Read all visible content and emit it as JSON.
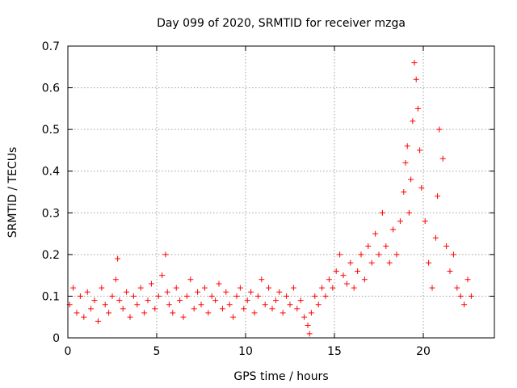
{
  "chart_data": {
    "type": "scatter",
    "title": "Day 099 of 2020, SRMTID for receiver mzga",
    "xlabel": "GPS time / hours",
    "ylabel": "SRMTID / TECUs",
    "xlim": [
      0,
      24
    ],
    "ylim": [
      0,
      0.7
    ],
    "xticks": [
      "0",
      "5",
      "10",
      "15",
      "20"
    ],
    "yticks": [
      "0",
      "0.1",
      "0.2",
      "0.3",
      "0.4",
      "0.5",
      "0.6",
      "0.7"
    ],
    "grid": true,
    "marker": "+",
    "series": [
      {
        "name": "SRMTID",
        "color": "#ff0000",
        "x": [
          0.1,
          0.3,
          0.5,
          0.7,
          0.9,
          1.1,
          1.3,
          1.5,
          1.7,
          1.9,
          2.1,
          2.3,
          2.5,
          2.7,
          2.8,
          2.9,
          3.1,
          3.3,
          3.5,
          3.7,
          3.9,
          4.1,
          4.3,
          4.5,
          4.7,
          4.9,
          5.1,
          5.3,
          5.5,
          5.6,
          5.7,
          5.9,
          6.1,
          6.3,
          6.5,
          6.7,
          6.9,
          7.1,
          7.3,
          7.5,
          7.7,
          7.9,
          8.1,
          8.3,
          8.5,
          8.7,
          8.9,
          9.1,
          9.3,
          9.5,
          9.7,
          9.9,
          10.1,
          10.3,
          10.5,
          10.7,
          10.9,
          11.1,
          11.3,
          11.5,
          11.7,
          11.9,
          12.1,
          12.3,
          12.5,
          12.7,
          12.9,
          13.1,
          13.3,
          13.5,
          13.6,
          13.7,
          13.9,
          14.1,
          14.3,
          14.5,
          14.7,
          14.9,
          15.1,
          15.3,
          15.5,
          15.7,
          15.9,
          16.1,
          16.3,
          16.5,
          16.7,
          16.9,
          17.1,
          17.3,
          17.5,
          17.7,
          17.9,
          18.1,
          18.3,
          18.5,
          18.7,
          18.9,
          19.0,
          19.1,
          19.2,
          19.3,
          19.4,
          19.5,
          19.6,
          19.7,
          19.8,
          19.9,
          20.1,
          20.3,
          20.5,
          20.7,
          20.8,
          20.9,
          21.1,
          21.3,
          21.5,
          21.7,
          21.9,
          22.1,
          22.3,
          22.5,
          22.7
        ],
        "y": [
          0.08,
          0.12,
          0.06,
          0.1,
          0.05,
          0.11,
          0.07,
          0.09,
          0.04,
          0.12,
          0.08,
          0.06,
          0.1,
          0.14,
          0.19,
          0.09,
          0.07,
          0.11,
          0.05,
          0.1,
          0.08,
          0.12,
          0.06,
          0.09,
          0.13,
          0.07,
          0.1,
          0.15,
          0.2,
          0.11,
          0.08,
          0.06,
          0.12,
          0.09,
          0.05,
          0.1,
          0.14,
          0.07,
          0.11,
          0.08,
          0.12,
          0.06,
          0.1,
          0.09,
          0.13,
          0.07,
          0.11,
          0.08,
          0.05,
          0.1,
          0.12,
          0.07,
          0.09,
          0.11,
          0.06,
          0.1,
          0.14,
          0.08,
          0.12,
          0.07,
          0.09,
          0.11,
          0.06,
          0.1,
          0.08,
          0.12,
          0.07,
          0.09,
          0.05,
          0.03,
          0.01,
          0.06,
          0.1,
          0.08,
          0.12,
          0.1,
          0.14,
          0.12,
          0.16,
          0.2,
          0.15,
          0.13,
          0.18,
          0.12,
          0.16,
          0.2,
          0.14,
          0.22,
          0.18,
          0.25,
          0.2,
          0.3,
          0.22,
          0.18,
          0.26,
          0.2,
          0.28,
          0.35,
          0.42,
          0.46,
          0.3,
          0.38,
          0.52,
          0.66,
          0.62,
          0.55,
          0.45,
          0.36,
          0.28,
          0.18,
          0.12,
          0.24,
          0.34,
          0.5,
          0.43,
          0.22,
          0.16,
          0.2,
          0.12,
          0.1,
          0.08,
          0.14,
          0.1
        ]
      }
    ]
  }
}
